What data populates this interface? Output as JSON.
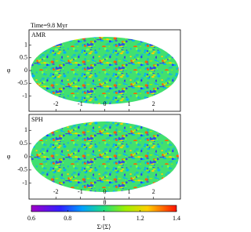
{
  "chart_data": [
    {
      "type": "skymap",
      "title": "Time=9.8 Myr",
      "label": "AMR",
      "xlabel": "θ",
      "ylabel": "φ",
      "xlim": [
        -3.1,
        3.1
      ],
      "xticks": [
        -2,
        -1,
        0,
        1,
        2
      ],
      "ylim": [
        -1.6,
        1.6
      ],
      "yticks": [
        -1,
        -0.5,
        0,
        0.5,
        1
      ]
    },
    {
      "type": "skymap",
      "label": "SPH",
      "xlabel": "θ",
      "ylabel": "φ",
      "xlim": [
        -3.1,
        3.1
      ],
      "xticks": [
        -2,
        -1,
        0,
        1,
        2
      ],
      "ylim": [
        -1.6,
        1.6
      ],
      "yticks": [
        -1,
        -0.5,
        0,
        0.5,
        1
      ]
    },
    {
      "type": "colorbar",
      "xlabel": "Σ/⟨Σ⟩",
      "xlim": [
        0.6,
        1.4
      ],
      "xticks": [
        0.6,
        0.8,
        1,
        1.2,
        1.4
      ]
    }
  ]
}
